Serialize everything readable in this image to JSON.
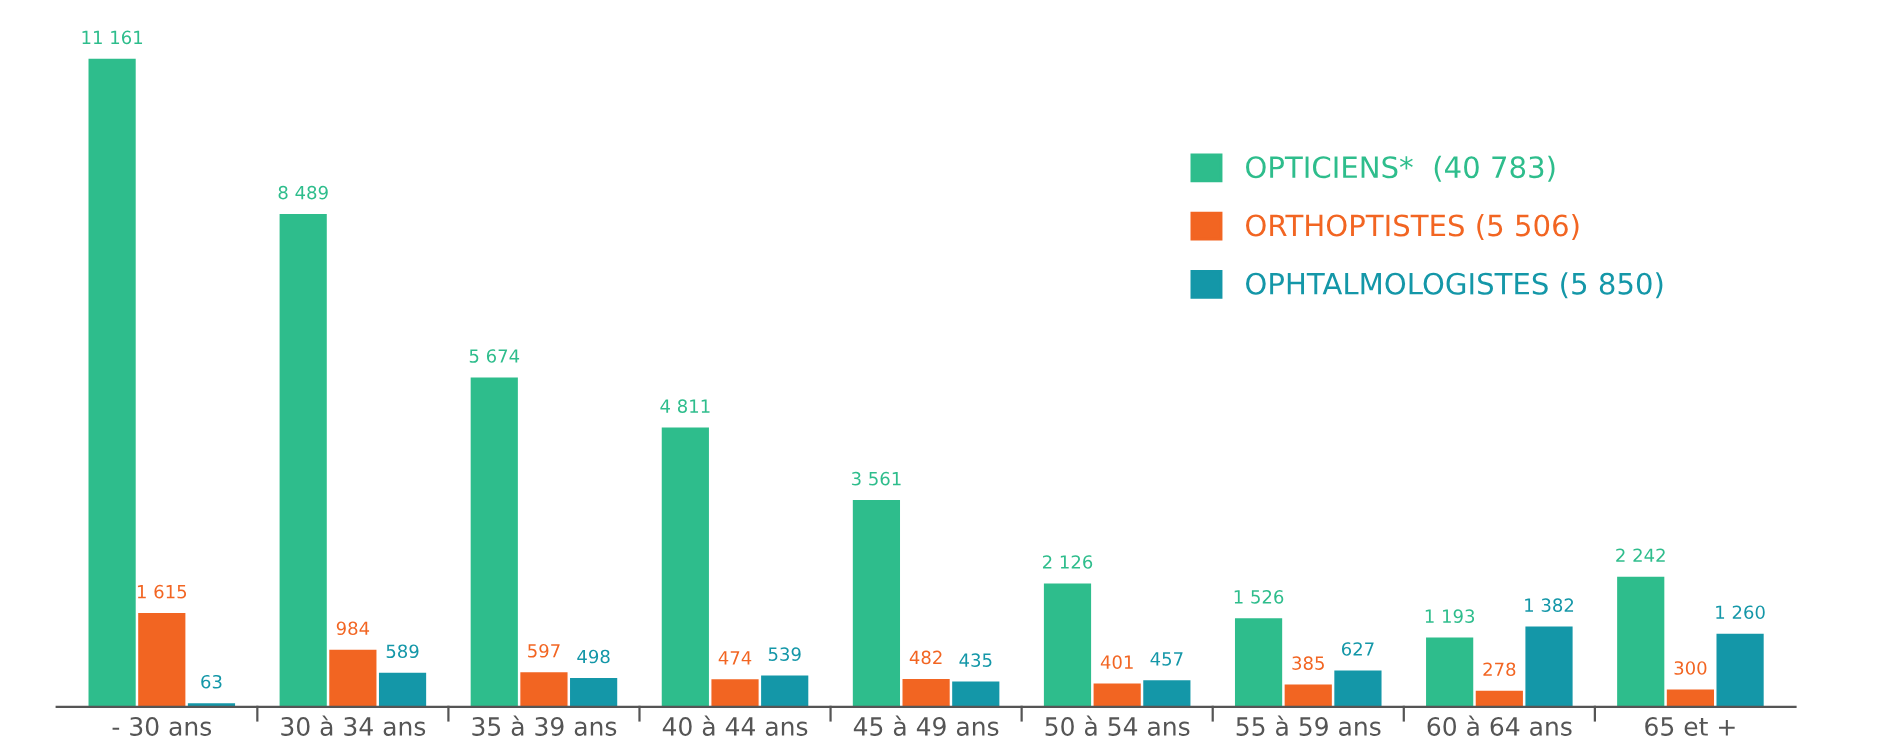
{
  "chart_data": {
    "type": "bar",
    "categories": [
      "- 30 ans",
      "30 à 34 ans",
      "35 à 39 ans",
      "40 à 44 ans",
      "45 à 49 ans",
      "50 à 54 ans",
      "55 à 59 ans",
      "60 à 64 ans",
      "65 et +"
    ],
    "series": [
      {
        "name": "OPTICIENS*  (40 783)",
        "color": "#2ebd8c",
        "values": [
          11161,
          8489,
          5674,
          4811,
          3561,
          2126,
          1526,
          1193,
          2242
        ],
        "value_labels": [
          "11 161",
          "8 489",
          "5 674",
          "4 811",
          "3 561",
          "2 126",
          "1 526",
          "1 193",
          "2 242"
        ]
      },
      {
        "name": "ORTHOPTISTES (5 506)",
        "color": "#f26522",
        "values": [
          1615,
          984,
          597,
          474,
          482,
          401,
          385,
          278,
          300
        ],
        "value_labels": [
          "1 615",
          "984",
          "597",
          "474",
          "482",
          "401",
          "385",
          "278",
          "300"
        ]
      },
      {
        "name": "OPHTALMOLOGISTES (5 850)",
        "color": "#1497a8",
        "values": [
          63,
          589,
          498,
          539,
          435,
          457,
          627,
          1382,
          1260
        ],
        "value_labels": [
          "63",
          "589",
          "498",
          "539",
          "435",
          "457",
          "627",
          "1 382",
          "1 260"
        ]
      }
    ],
    "legend": "top right",
    "grid": false
  }
}
